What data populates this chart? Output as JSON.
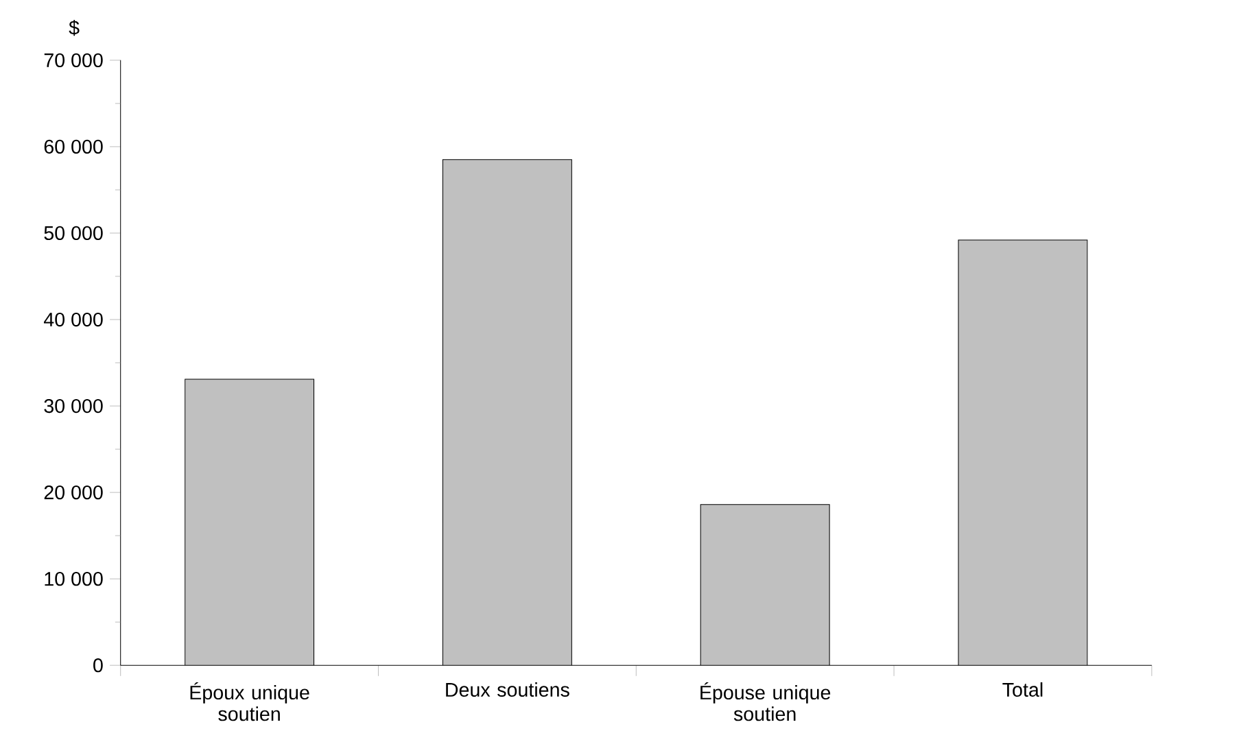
{
  "chart_data": {
    "type": "bar",
    "ylabel": "$",
    "categories": [
      "Époux unique soutien",
      "Deux soutiens",
      "Épouse unique soutien",
      "Total"
    ],
    "values": [
      33100,
      58500,
      18600,
      49200
    ],
    "color": "#c0c0c0",
    "ylim": [
      0,
      70000
    ],
    "yticks": [
      {
        "value": 0,
        "label": "0"
      },
      {
        "value": 5000,
        "label": null
      },
      {
        "value": 10000,
        "label": "10 000"
      },
      {
        "value": 15000,
        "label": null
      },
      {
        "value": 20000,
        "label": "20 000"
      },
      {
        "value": 25000,
        "label": null
      },
      {
        "value": 30000,
        "label": "30 000"
      },
      {
        "value": 35000,
        "label": null
      },
      {
        "value": 40000,
        "label": "40 000"
      },
      {
        "value": 45000,
        "label": null
      },
      {
        "value": 50000,
        "label": "50 000"
      },
      {
        "value": 55000,
        "label": null
      },
      {
        "value": 60000,
        "label": "60 000"
      },
      {
        "value": 65000,
        "label": null
      },
      {
        "value": 70000,
        "label": "70 000"
      }
    ],
    "grid": false
  }
}
